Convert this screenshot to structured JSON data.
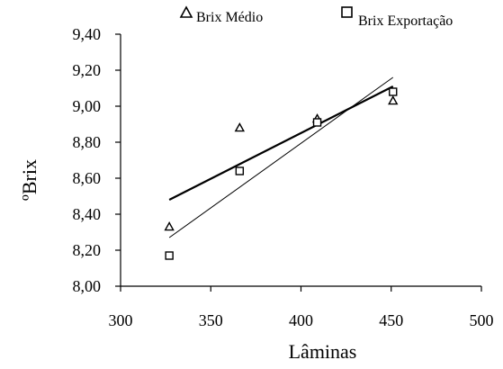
{
  "chart_data": {
    "type": "scatter",
    "title": "",
    "xlabel": "Lâminas",
    "ylabel": "ºBrix",
    "xlim": [
      300,
      500
    ],
    "ylim": [
      8.0,
      9.4
    ],
    "x_ticks": [
      300,
      350,
      400,
      450,
      500
    ],
    "x_tick_labels": [
      "300",
      "350",
      "400",
      "450",
      "500"
    ],
    "y_ticks": [
      8.0,
      8.2,
      8.4,
      8.6,
      8.8,
      9.0,
      9.2,
      9.4
    ],
    "y_tick_labels": [
      "8,00",
      "8,20",
      "8,40",
      "8,60",
      "8,80",
      "9,00",
      "9,20",
      "9,40"
    ],
    "grid": false,
    "legend_position": "top",
    "series": [
      {
        "name": "Brix Médio",
        "marker": "triangle",
        "x": [
          327,
          366,
          409,
          451
        ],
        "y": [
          8.33,
          8.88,
          8.93,
          9.03
        ],
        "trendline": {
          "from": [
            327,
            8.48
          ],
          "to": [
            451,
            9.11
          ],
          "weight": "thick"
        }
      },
      {
        "name": "Brix Exportação",
        "marker": "square",
        "x": [
          327,
          366,
          409,
          451
        ],
        "y": [
          8.17,
          8.64,
          8.91,
          9.08
        ],
        "trendline": {
          "from": [
            327,
            8.27
          ],
          "to": [
            451,
            9.16
          ],
          "weight": "thin"
        }
      }
    ]
  }
}
